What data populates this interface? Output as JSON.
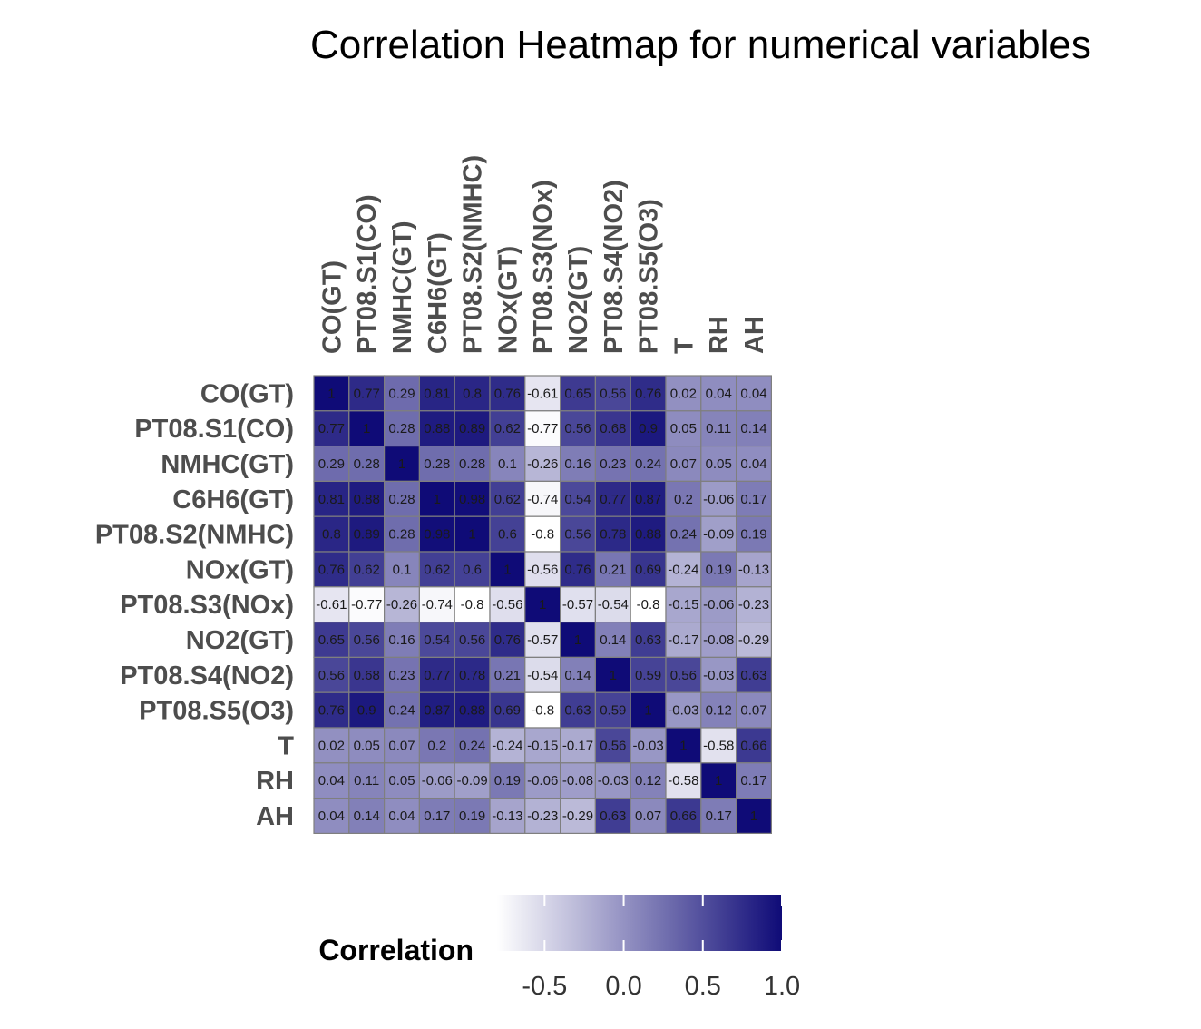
{
  "chart_data": {
    "type": "heatmap",
    "title": "Correlation Heatmap for numerical variables",
    "variables": [
      "CO(GT)",
      "PT08.S1(CO)",
      "NMHC(GT)",
      "C6H6(GT)",
      "PT08.S2(NMHC)",
      "NOx(GT)",
      "PT08.S3(NOx)",
      "NO2(GT)",
      "PT08.S4(NO2)",
      "PT08.S5(O3)",
      "T",
      "RH",
      "AH"
    ],
    "matrix": [
      [
        1,
        0.77,
        0.29,
        0.81,
        0.8,
        0.76,
        -0.61,
        0.65,
        0.56,
        0.76,
        0.02,
        0.04,
        0.04
      ],
      [
        0.77,
        1,
        0.28,
        0.88,
        0.89,
        0.62,
        -0.77,
        0.56,
        0.68,
        0.9,
        0.05,
        0.11,
        0.14
      ],
      [
        0.29,
        0.28,
        1,
        0.28,
        0.28,
        0.1,
        -0.26,
        0.16,
        0.23,
        0.24,
        0.07,
        0.05,
        0.04
      ],
      [
        0.81,
        0.88,
        0.28,
        1,
        0.98,
        0.62,
        -0.74,
        0.54,
        0.77,
        0.87,
        0.2,
        -0.06,
        0.17
      ],
      [
        0.8,
        0.89,
        0.28,
        0.98,
        1,
        0.6,
        -0.8,
        0.56,
        0.78,
        0.88,
        0.24,
        -0.09,
        0.19
      ],
      [
        0.76,
        0.62,
        0.1,
        0.62,
        0.6,
        1,
        -0.56,
        0.76,
        0.21,
        0.69,
        -0.24,
        0.19,
        -0.13
      ],
      [
        -0.61,
        -0.77,
        -0.26,
        -0.74,
        -0.8,
        -0.56,
        1,
        -0.57,
        -0.54,
        -0.8,
        -0.15,
        -0.06,
        -0.23
      ],
      [
        0.65,
        0.56,
        0.16,
        0.54,
        0.56,
        0.76,
        -0.57,
        1,
        0.14,
        0.63,
        -0.17,
        -0.08,
        -0.29
      ],
      [
        0.56,
        0.68,
        0.23,
        0.77,
        0.78,
        0.21,
        -0.54,
        0.14,
        1,
        0.59,
        0.56,
        -0.03,
        0.63
      ],
      [
        0.76,
        0.9,
        0.24,
        0.87,
        0.88,
        0.69,
        -0.8,
        0.63,
        0.59,
        1,
        -0.03,
        0.12,
        0.07
      ],
      [
        0.02,
        0.05,
        0.07,
        0.2,
        0.24,
        -0.24,
        -0.15,
        -0.17,
        0.56,
        -0.03,
        1,
        -0.58,
        0.66
      ],
      [
        0.04,
        0.11,
        0.05,
        -0.06,
        -0.09,
        0.19,
        -0.06,
        -0.08,
        -0.03,
        0.12,
        -0.58,
        1,
        0.17
      ],
      [
        0.04,
        0.14,
        0.04,
        0.17,
        0.19,
        -0.13,
        -0.23,
        -0.29,
        0.63,
        0.07,
        0.66,
        0.17,
        1
      ]
    ],
    "cell_labels": [
      [
        "1",
        "0.77",
        "0.29",
        "0.81",
        "0.8",
        "0.76",
        "-0.61",
        "0.65",
        "0.56",
        "0.76",
        "0.02",
        "0.04",
        "0.04"
      ],
      [
        "0.77",
        "1",
        "0.28",
        "0.88",
        "0.89",
        "0.62",
        "-0.77",
        "0.56",
        "0.68",
        "0.9",
        "0.05",
        "0.11",
        "0.14"
      ],
      [
        "0.29",
        "0.28",
        "1",
        "0.28",
        "0.28",
        "0.1",
        "-0.26",
        "0.16",
        "0.23",
        "0.24",
        "0.07",
        "0.05",
        "0.04"
      ],
      [
        "0.81",
        "0.88",
        "0.28",
        "1",
        "0.98",
        "0.62",
        "-0.74",
        "0.54",
        "0.77",
        "0.87",
        "0.2",
        "-0.06",
        "0.17"
      ],
      [
        "0.8",
        "0.89",
        "0.28",
        "0.98",
        "1",
        "0.6",
        "-0.8",
        "0.56",
        "0.78",
        "0.88",
        "0.24",
        "-0.09",
        "0.19"
      ],
      [
        "0.76",
        "0.62",
        "0.1",
        "0.62",
        "0.6",
        "1",
        "-0.56",
        "0.76",
        "0.21",
        "0.69",
        "-0.24",
        "0.19",
        "-0.13"
      ],
      [
        "-0.61",
        "-0.77",
        "-0.26",
        "-0.74",
        "-0.8",
        "-0.56",
        "1",
        "-0.57",
        "-0.54",
        "-0.8",
        "-0.15",
        "-0.06",
        "-0.23"
      ],
      [
        "0.65",
        "0.56",
        "0.16",
        "0.54",
        "0.56",
        "0.76",
        "-0.57",
        "1",
        "0.14",
        "0.63",
        "-0.17",
        "-0.08",
        "-0.29"
      ],
      [
        "0.56",
        "0.68",
        "0.23",
        "0.77",
        "0.78",
        "0.21",
        "-0.54",
        "0.14",
        "1",
        "0.59",
        "0.56",
        "-0.03",
        "0.63"
      ],
      [
        "0.76",
        "0.9",
        "0.24",
        "0.87",
        "0.88",
        "0.69",
        "-0.8",
        "0.63",
        "0.59",
        "1",
        "-0.03",
        "0.12",
        "0.07"
      ],
      [
        "0.02",
        "0.05",
        "0.07",
        "0.2",
        "0.24",
        "-0.24",
        "-0.15",
        "-0.17",
        "0.56",
        "-0.03",
        "1",
        "-0.58",
        "0.66"
      ],
      [
        "0.04",
        "0.11",
        "0.05",
        "-0.06",
        "-0.09",
        "0.19",
        "-0.06",
        "-0.08",
        "-0.03",
        "0.12",
        "-0.58",
        "1",
        "0.17"
      ],
      [
        "0.04",
        "0.14",
        "0.04",
        "0.17",
        "0.19",
        "-0.13",
        "-0.23",
        "-0.29",
        "0.63",
        "0.07",
        "0.66",
        "0.17",
        "1"
      ]
    ],
    "color_scale": {
      "low_color": "#ffffff",
      "high_color": "#0f0b77",
      "domain": [
        -0.8,
        1.0
      ]
    },
    "cell_border_color": "#7f7f7f",
    "legend": {
      "title": "Correlation",
      "position": "bottom",
      "ticks": [
        -0.5,
        0.0,
        0.5,
        1.0
      ],
      "tick_labels": [
        "-0.5",
        "0.0",
        "0.5",
        "1.0"
      ]
    },
    "grid": false
  }
}
